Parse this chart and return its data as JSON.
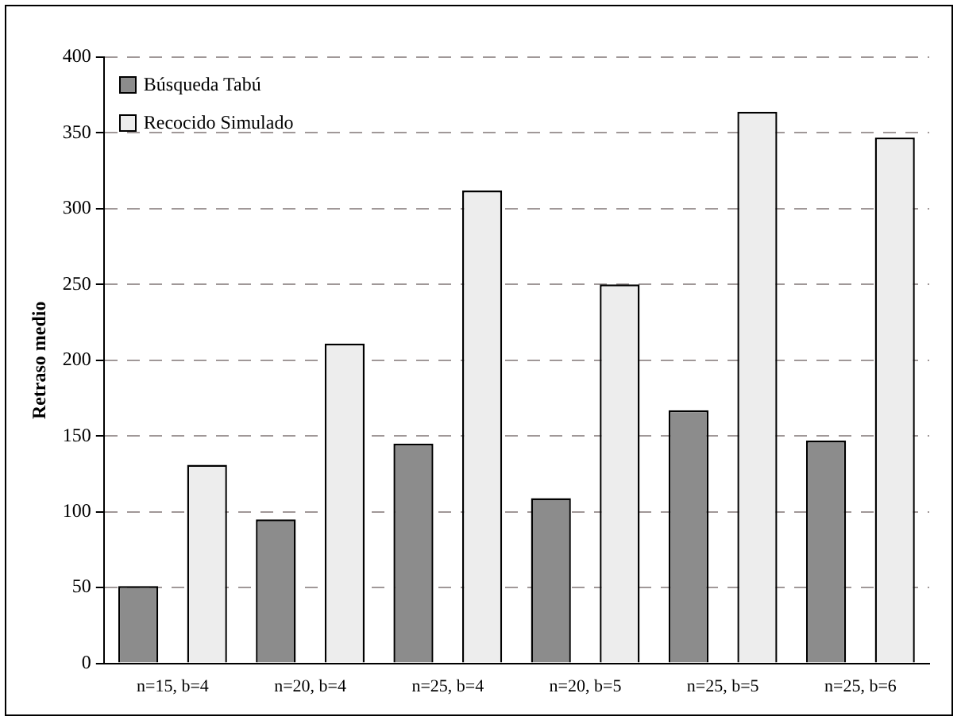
{
  "chart_data": {
    "type": "bar",
    "ylabel": "Retraso medio",
    "categories": [
      "n=15, b=4",
      "n=20, b=4",
      "n=25, b=4",
      "n=20, b=5",
      "n=25, b=5",
      "n=25, b=6"
    ],
    "series": [
      {
        "name": "Búsqueda Tabú",
        "color": "#8c8c8c",
        "values": [
          51,
          95,
          145,
          109,
          167,
          147
        ]
      },
      {
        "name": "Recocido Simulado",
        "color": "#ededed",
        "values": [
          131,
          211,
          312,
          250,
          364,
          347
        ]
      }
    ],
    "ylim": [
      0,
      400
    ],
    "yticks": [
      0,
      50,
      100,
      150,
      200,
      250,
      300,
      350,
      400
    ],
    "grid": "y",
    "legend": "top left"
  }
}
